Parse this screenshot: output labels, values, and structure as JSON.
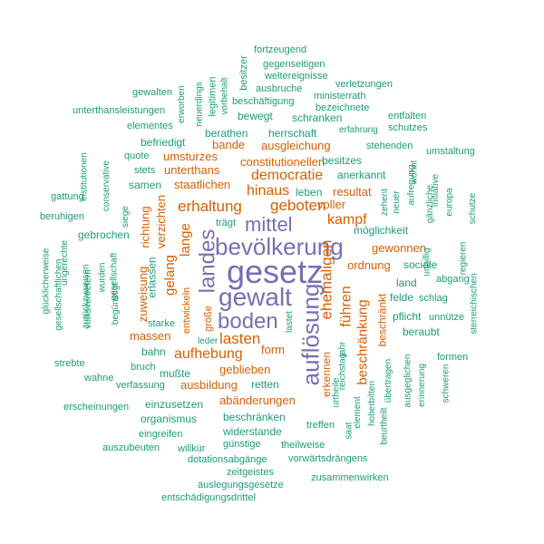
{
  "colors": {
    "purple": "#7570b3",
    "orange": "#d95f02",
    "teal": "#1b9e77"
  },
  "words": [
    {
      "text": "gesetz",
      "color": "purple",
      "weight": 10
    },
    {
      "text": "bevölkerung",
      "color": "purple",
      "weight": 8
    },
    {
      "text": "gewalt",
      "color": "purple",
      "weight": 8
    },
    {
      "text": "boden",
      "color": "purple",
      "weight": 7
    },
    {
      "text": "auflösung",
      "color": "purple",
      "weight": 8
    },
    {
      "text": "landes",
      "color": "purple",
      "weight": 7
    },
    {
      "text": "mittel",
      "color": "purple",
      "weight": 6
    },
    {
      "text": "lasten",
      "color": "orange",
      "weight": 5
    },
    {
      "text": "ehemaligen",
      "color": "orange",
      "weight": 5
    },
    {
      "text": "erhaltung",
      "color": "orange",
      "weight": 4
    },
    {
      "text": "geboten",
      "color": "orange",
      "weight": 4
    },
    {
      "text": "hinaus",
      "color": "orange",
      "weight": 4
    },
    {
      "text": "kampf",
      "color": "orange",
      "weight": 4
    },
    {
      "text": "democratie",
      "color": "orange",
      "weight": 4
    },
    {
      "text": "führen",
      "color": "orange",
      "weight": 4
    },
    {
      "text": "aufhebung",
      "color": "orange",
      "weight": 4
    },
    {
      "text": "beschränkung",
      "color": "orange",
      "weight": 4
    },
    {
      "text": "lange",
      "color": "orange",
      "weight": 4
    },
    {
      "text": "gelang",
      "color": "orange",
      "weight": 4
    },
    {
      "text": "ausgleichung",
      "color": "orange",
      "weight": 3
    },
    {
      "text": "constitutionellen",
      "color": "orange",
      "weight": 3
    },
    {
      "text": "umsturzes",
      "color": "orange",
      "weight": 3
    },
    {
      "text": "unterthans",
      "color": "orange",
      "weight": 3
    },
    {
      "text": "staatlichen",
      "color": "orange",
      "weight": 3
    },
    {
      "text": "bande",
      "color": "orange",
      "weight": 3
    },
    {
      "text": "resultat",
      "color": "orange",
      "weight": 3
    },
    {
      "text": "voller",
      "color": "orange",
      "weight": 3
    },
    {
      "text": "ordnung",
      "color": "orange",
      "weight": 3
    },
    {
      "text": "gewonnen",
      "color": "orange",
      "weight": 3
    },
    {
      "text": "massen",
      "color": "orange",
      "weight": 3
    },
    {
      "text": "zuweisung",
      "color": "orange",
      "weight": 3
    },
    {
      "text": "richtung",
      "color": "orange",
      "weight": 3
    },
    {
      "text": "verzichten",
      "color": "orange",
      "weight": 3
    },
    {
      "text": "ausbildung",
      "color": "orange",
      "weight": 3
    },
    {
      "text": "geblieben",
      "color": "orange",
      "weight": 3
    },
    {
      "text": "abänderungen",
      "color": "orange",
      "weight": 3
    },
    {
      "text": "form",
      "color": "orange",
      "weight": 3
    },
    {
      "text": "erkennen",
      "color": "orange",
      "weight": 3
    },
    {
      "text": "beschränkt",
      "color": "orange",
      "weight": 3
    },
    {
      "text": "entwickeln",
      "color": "orange",
      "weight": 2
    },
    {
      "text": "größe",
      "color": "orange",
      "weight": 2
    },
    {
      "text": "fortzeugend",
      "color": "teal",
      "weight": 1
    },
    {
      "text": "gegenseitigen",
      "color": "teal",
      "weight": 1
    },
    {
      "text": "besitzer",
      "color": "teal",
      "weight": 1
    },
    {
      "text": "weltereignisse",
      "color": "teal",
      "weight": 1
    },
    {
      "text": "verletzungen",
      "color": "teal",
      "weight": 1
    },
    {
      "text": "ausbruche",
      "color": "teal",
      "weight": 1
    },
    {
      "text": "ministerrath",
      "color": "teal",
      "weight": 1
    },
    {
      "text": "gewalten",
      "color": "teal",
      "weight": 1
    },
    {
      "text": "erworben",
      "color": "teal",
      "weight": 1
    },
    {
      "text": "neuerdings",
      "color": "teal",
      "weight": 1
    },
    {
      "text": "legitimen",
      "color": "teal",
      "weight": 1
    },
    {
      "text": "vorbehalt",
      "color": "teal",
      "weight": 1
    },
    {
      "text": "beschäftigung",
      "color": "teal",
      "weight": 1
    },
    {
      "text": "bezeichnete",
      "color": "teal",
      "weight": 1
    },
    {
      "text": "unterthansleistungen",
      "color": "teal",
      "weight": 1
    },
    {
      "text": "entfalten",
      "color": "teal",
      "weight": 1
    },
    {
      "text": "bewegt",
      "color": "teal",
      "weight": 2
    },
    {
      "text": "schranken",
      "color": "teal",
      "weight": 2
    },
    {
      "text": "elementes",
      "color": "teal",
      "weight": 1
    },
    {
      "text": "erfahrung",
      "color": "teal",
      "weight": 1
    },
    {
      "text": "schutzes",
      "color": "teal",
      "weight": 1
    },
    {
      "text": "berathen",
      "color": "teal",
      "weight": 2
    },
    {
      "text": "herrschaft",
      "color": "teal",
      "weight": 2
    },
    {
      "text": "befriedigt",
      "color": "teal",
      "weight": 2
    },
    {
      "text": "stehenden",
      "color": "teal",
      "weight": 1
    },
    {
      "text": "institutionen",
      "color": "teal",
      "weight": 1
    },
    {
      "text": "quote",
      "color": "teal",
      "weight": 1
    },
    {
      "text": "besitzes",
      "color": "teal",
      "weight": 2
    },
    {
      "text": "umstaltung",
      "color": "teal",
      "weight": 1
    },
    {
      "text": "conservative",
      "color": "teal",
      "weight": 1
    },
    {
      "text": "stets",
      "color": "teal",
      "weight": 1
    },
    {
      "text": "wohnt",
      "color": "teal",
      "weight": 1
    },
    {
      "text": "samen",
      "color": "teal",
      "weight": 2
    },
    {
      "text": "anerkannt",
      "color": "teal",
      "weight": 2
    },
    {
      "text": "aufregung",
      "color": "teal",
      "weight": 1
    },
    {
      "text": "initiative",
      "color": "teal",
      "weight": 1
    },
    {
      "text": "gattung",
      "color": "teal",
      "weight": 1
    },
    {
      "text": "leben",
      "color": "teal",
      "weight": 2
    },
    {
      "text": "zehent",
      "color": "teal",
      "weight": 1
    },
    {
      "text": "neuer",
      "color": "teal",
      "weight": 1
    },
    {
      "text": "gänzliche",
      "color": "teal",
      "weight": 1
    },
    {
      "text": "europa",
      "color": "teal",
      "weight": 1
    },
    {
      "text": "schutze",
      "color": "teal",
      "weight": 1
    },
    {
      "text": "siege",
      "color": "teal",
      "weight": 1
    },
    {
      "text": "trägt",
      "color": "teal",
      "weight": 1
    },
    {
      "text": "beruhigen",
      "color": "teal",
      "weight": 1
    },
    {
      "text": "möglichkeit",
      "color": "teal",
      "weight": 1
    },
    {
      "text": "gebrochen",
      "color": "teal",
      "weight": 2
    },
    {
      "text": "ungerechte",
      "color": "teal",
      "weight": 1
    },
    {
      "text": "unbillig",
      "color": "teal",
      "weight": 1
    },
    {
      "text": "regieren",
      "color": "teal",
      "weight": 1
    },
    {
      "text": "sociale",
      "color": "teal",
      "weight": 2
    },
    {
      "text": "glücklicherweise",
      "color": "teal",
      "weight": 1
    },
    {
      "text": "gesellschaftlichen",
      "color": "teal",
      "weight": 1
    },
    {
      "text": "zurückzuweisen",
      "color": "teal",
      "weight": 1
    },
    {
      "text": "erlassen",
      "color": "teal",
      "weight": 2
    },
    {
      "text": "gesellschaft",
      "color": "teal",
      "weight": 1
    },
    {
      "text": "land",
      "color": "teal",
      "weight": 2
    },
    {
      "text": "abgang",
      "color": "teal",
      "weight": 1
    },
    {
      "text": "volksvertretern",
      "color": "teal",
      "weight": 1
    },
    {
      "text": "wurden",
      "color": "teal",
      "weight": 1
    },
    {
      "text": "felde",
      "color": "teal",
      "weight": 2
    },
    {
      "text": "schlag",
      "color": "teal",
      "weight": 1
    },
    {
      "text": "sterreichischen",
      "color": "teal",
      "weight": 1
    },
    {
      "text": "begünstigt",
      "color": "teal",
      "weight": 1
    },
    {
      "text": "pflicht",
      "color": "teal",
      "weight": 2
    },
    {
      "text": "unnütze",
      "color": "teal",
      "weight": 1
    },
    {
      "text": "starke",
      "color": "teal",
      "weight": 1
    },
    {
      "text": "leder",
      "color": "teal",
      "weight": 1
    },
    {
      "text": "lastet",
      "color": "teal",
      "weight": 1
    },
    {
      "text": "beraubt",
      "color": "teal",
      "weight": 2
    },
    {
      "text": "bahn",
      "color": "teal",
      "weight": 2
    },
    {
      "text": "strebte",
      "color": "teal",
      "weight": 1
    },
    {
      "text": "bruch",
      "color": "teal",
      "weight": 1
    },
    {
      "text": "formen",
      "color": "teal",
      "weight": 1
    },
    {
      "text": "wahne",
      "color": "teal",
      "weight": 1
    },
    {
      "text": "mußte",
      "color": "teal",
      "weight": 2
    },
    {
      "text": "verfassung",
      "color": "teal",
      "weight": 1
    },
    {
      "text": "retten",
      "color": "teal",
      "weight": 2
    },
    {
      "text": "reichstag",
      "color": "teal",
      "weight": 1
    },
    {
      "text": "jahr",
      "color": "teal",
      "weight": 1
    },
    {
      "text": "urtheile",
      "color": "teal",
      "weight": 1
    },
    {
      "text": "übertragen",
      "color": "teal",
      "weight": 1
    },
    {
      "text": "ausgeglichen",
      "color": "teal",
      "weight": 1
    },
    {
      "text": "erinnerung",
      "color": "teal",
      "weight": 1
    },
    {
      "text": "schweren",
      "color": "teal",
      "weight": 1
    },
    {
      "text": "einzusetzen",
      "color": "teal",
      "weight": 2
    },
    {
      "text": "erscheinungen",
      "color": "teal",
      "weight": 1
    },
    {
      "text": "organismus",
      "color": "teal",
      "weight": 2
    },
    {
      "text": "hoherbitten",
      "color": "teal",
      "weight": 1
    },
    {
      "text": "element",
      "color": "teal",
      "weight": 1
    },
    {
      "text": "saat",
      "color": "teal",
      "weight": 1
    },
    {
      "text": "beschränken",
      "color": "teal",
      "weight": 2
    },
    {
      "text": "widerstande",
      "color": "teal",
      "weight": 2
    },
    {
      "text": "treffen",
      "color": "teal",
      "weight": 1
    },
    {
      "text": "beurtheilt",
      "color": "teal",
      "weight": 1
    },
    {
      "text": "eingreifen",
      "color": "teal",
      "weight": 1
    },
    {
      "text": "auszubeuten",
      "color": "teal",
      "weight": 1
    },
    {
      "text": "willkür",
      "color": "teal",
      "weight": 1
    },
    {
      "text": "günstige",
      "color": "teal",
      "weight": 1
    },
    {
      "text": "theilweise",
      "color": "teal",
      "weight": 1
    },
    {
      "text": "dotationsabgänge",
      "color": "teal",
      "weight": 1
    },
    {
      "text": "vorwärtsdrängens",
      "color": "teal",
      "weight": 1
    },
    {
      "text": "zeitgeistes",
      "color": "teal",
      "weight": 1
    },
    {
      "text": "zusammenwirken",
      "color": "teal",
      "weight": 1
    },
    {
      "text": "auslegungsgesetze",
      "color": "teal",
      "weight": 1
    },
    {
      "text": "entschädigungsdrittel",
      "color": "teal",
      "weight": 1
    }
  ]
}
